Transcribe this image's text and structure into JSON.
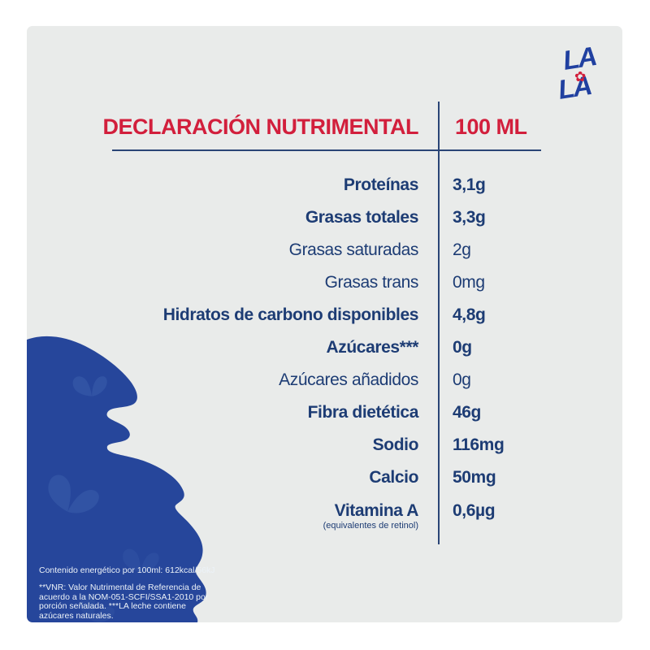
{
  "logo": {
    "name": "lala-logo",
    "top_text": "LA",
    "bottom_text": "LA"
  },
  "header": {
    "title": "DECLARACIÓN NUTRIMENTAL",
    "serving_column": "100 ML"
  },
  "table": {
    "rows": [
      {
        "label": "Proteínas",
        "value": "3,1g",
        "bold": true
      },
      {
        "label": "Grasas totales",
        "value": "3,3g",
        "bold": true
      },
      {
        "label": "Grasas saturadas",
        "value": "2g",
        "bold": false
      },
      {
        "label": "Grasas trans",
        "value": "0mg",
        "bold": false
      },
      {
        "label": "Hidratos de carbono disponibles",
        "value": "4,8g",
        "bold": true
      },
      {
        "label": "Azúcares***",
        "value": "0g",
        "bold": true
      },
      {
        "label": "Azúcares añadidos",
        "value": "0g",
        "bold": false
      },
      {
        "label": "Fibra dietética",
        "value": "46g",
        "bold": true
      },
      {
        "label": "Sodio",
        "value": "116mg",
        "bold": true
      },
      {
        "label": "Calcio",
        "value": "50mg",
        "bold": true
      },
      {
        "label": "Vitamina A",
        "sublabel": "(equivalentes de retinol)",
        "value": "0,6µg",
        "bold": true
      }
    ]
  },
  "footnotes": {
    "energy": "Contenido energético por 100ml: 612kcal/56kJ",
    "vnr": "**VNR: Valor Nutrimental de Referencia de acuerdo a la NOM-051-SCFI/SSA1-2010 por porción señalada. ***LA leche contiene azúcares naturales."
  },
  "colors": {
    "accent_red": "#d21f3c",
    "text_navy": "#1d3c74",
    "rule_navy": "#2a4576",
    "splash_blue": "#26469b",
    "butterfly_blue": "#3153a4",
    "card_gray": "#e9ebea",
    "footnote_white": "#ecf2f8"
  }
}
